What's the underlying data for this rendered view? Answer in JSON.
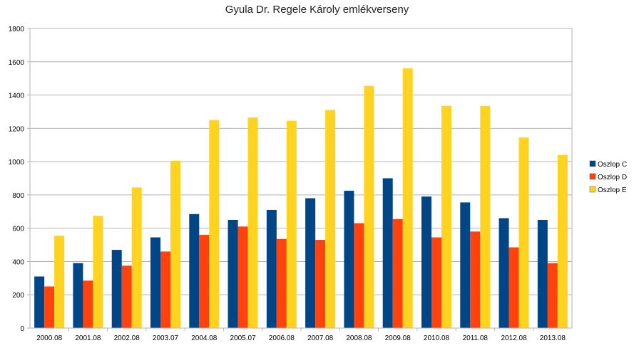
{
  "chart_data": {
    "type": "bar",
    "title": "Gyula Dr. Regele Károly emlékverseny",
    "categories": [
      "2000.08",
      "2001.08",
      "2002.08",
      "2003.07",
      "2004.08",
      "2005.07",
      "2006.08",
      "2007.08",
      "2008.08",
      "2009.08",
      "2010.08",
      "2011.08",
      "2012.08",
      "2013.08"
    ],
    "series": [
      {
        "name": "Oszlop C",
        "color": "#004586",
        "values": [
          310,
          390,
          470,
          545,
          685,
          650,
          710,
          780,
          825,
          900,
          790,
          755,
          660,
          650
        ]
      },
      {
        "name": "Oszlop D",
        "color": "#ff420e",
        "values": [
          250,
          285,
          375,
          460,
          560,
          610,
          535,
          530,
          630,
          655,
          545,
          580,
          485,
          390
        ]
      },
      {
        "name": "Oszlop E",
        "color": "#ffd320",
        "values": [
          555,
          675,
          845,
          1005,
          1250,
          1265,
          1245,
          1310,
          1455,
          1560,
          1335,
          1335,
          1145,
          1040
        ]
      }
    ],
    "ylim": [
      0,
      1800
    ],
    "yticks": [
      0,
      200,
      400,
      600,
      800,
      1000,
      1200,
      1400,
      1600,
      1800
    ],
    "grid": true,
    "legend_position": "right"
  }
}
